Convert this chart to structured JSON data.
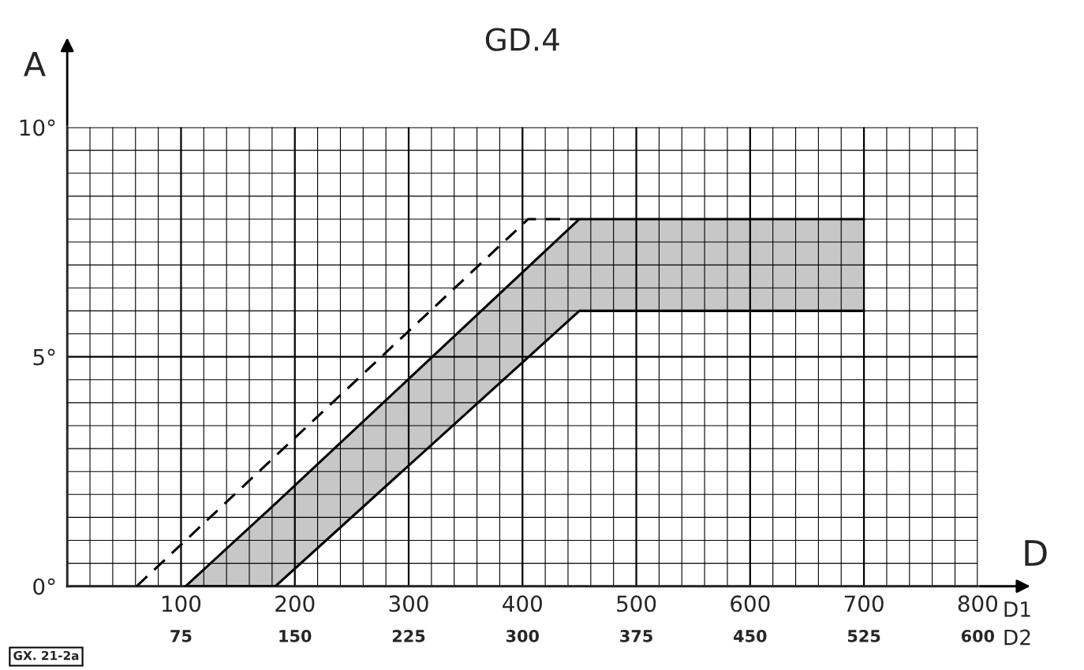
{
  "chart_data": {
    "type": "line",
    "title": "GD.4",
    "xlabel": "D",
    "ylabel": "A",
    "xlim": [
      0,
      800
    ],
    "xticks": [
      {
        "value": 0,
        "label": null
      },
      100,
      200,
      300,
      400,
      500,
      600,
      700,
      800
    ],
    "x2lim": [
      0,
      600
    ],
    "x2ticks": [
      75,
      150,
      225,
      300,
      375,
      450,
      525,
      600
    ],
    "ylim": [
      0,
      10
    ],
    "yticks": [
      {
        "value": 0,
        "label": "0°"
      },
      {
        "value": 5,
        "label": "5°"
      },
      {
        "value": 10,
        "label": "10°"
      }
    ],
    "grid": true,
    "series": [
      {
        "color": "#000000",
        "x": [
          104,
          183,
          450,
          700
        ],
        "values": [
          0,
          1.8,
          8,
          8
        ],
        "lower": [
          0,
          0,
          6,
          6
        ],
        "upper": [
          0,
          1.8,
          8,
          8
        ]
      },
      {
        "color": "#000000",
        "x": [
          104,
          183,
          450,
          700
        ],
        "values": [
          0,
          0,
          6,
          6
        ]
      },
      {
        "color": "#000000",
        "line_style": "dashed",
        "x": [
          61,
          405,
          450
        ],
        "values": [
          0,
          8,
          8
        ]
      }
    ],
    "annotations": [
      "D1",
      "D2",
      "GX. 21-2a"
    ]
  }
}
